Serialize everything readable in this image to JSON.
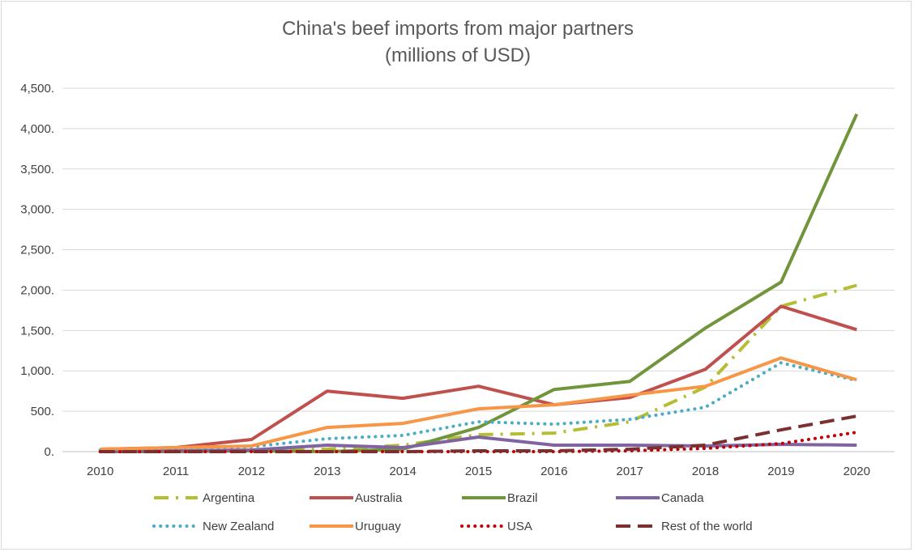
{
  "chart_data": {
    "type": "line",
    "title": "China's beef imports from major partners",
    "subtitle": "(millions of USD)",
    "xlabel": "",
    "ylabel": "",
    "categories": [
      "2010",
      "2011",
      "2012",
      "2013",
      "2014",
      "2015",
      "2016",
      "2017",
      "2018",
      "2019",
      "2020"
    ],
    "y_tick_labels": [
      "0.",
      "500.",
      "1,000.",
      "1,500.",
      "2,000.",
      "2,500.",
      "3,000.",
      "3,500.",
      "4,000.",
      "4,500."
    ],
    "ylim": [
      0,
      4500
    ],
    "grid": true,
    "legend_position": "bottom",
    "series": [
      {
        "name": "Argentina",
        "color": "#b5bd32",
        "dash": "dashdot",
        "values": [
          5,
          10,
          20,
          30,
          80,
          210,
          230,
          370,
          800,
          1800,
          2060
        ]
      },
      {
        "name": "Australia",
        "color": "#c0504d",
        "dash": "solid",
        "values": [
          30,
          50,
          150,
          750,
          660,
          810,
          580,
          670,
          1020,
          1800,
          1510
        ]
      },
      {
        "name": "Brazil",
        "color": "#70953b",
        "dash": "solid",
        "values": [
          0,
          0,
          10,
          0,
          30,
          300,
          770,
          870,
          1530,
          2100,
          4180
        ]
      },
      {
        "name": "Canada",
        "color": "#8064a2",
        "dash": "solid",
        "values": [
          5,
          10,
          20,
          80,
          50,
          180,
          80,
          80,
          70,
          90,
          80
        ]
      },
      {
        "name": "New Zealand",
        "color": "#4bacc6",
        "dash": "dotted",
        "values": [
          20,
          40,
          60,
          160,
          200,
          370,
          340,
          400,
          550,
          1100,
          880
        ]
      },
      {
        "name": "Uruguay",
        "color": "#f79646",
        "dash": "solid",
        "values": [
          30,
          50,
          70,
          300,
          350,
          530,
          580,
          700,
          810,
          1160,
          890
        ]
      },
      {
        "name": "USA",
        "color": "#c00000",
        "dash": "dotted",
        "values": [
          0,
          0,
          0,
          0,
          0,
          0,
          0,
          10,
          40,
          100,
          240
        ]
      },
      {
        "name": "Rest of the world",
        "color": "#7b2f2f",
        "dash": "dashed",
        "values": [
          0,
          0,
          0,
          0,
          0,
          10,
          10,
          30,
          80,
          270,
          440
        ]
      }
    ]
  }
}
